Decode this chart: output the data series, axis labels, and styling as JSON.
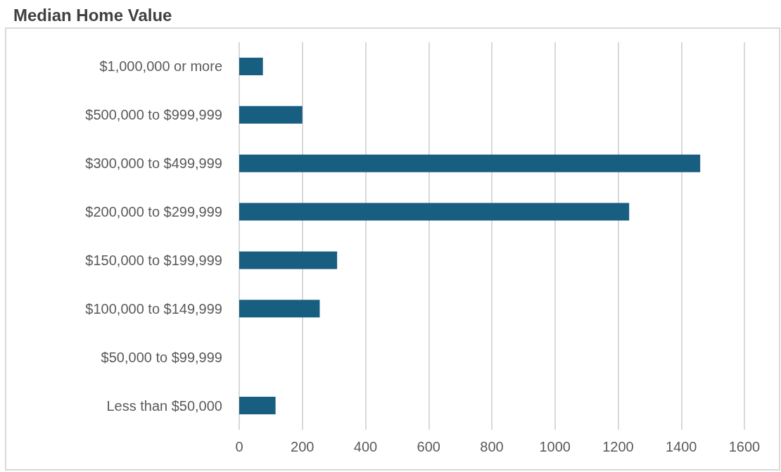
{
  "chart_data": {
    "type": "bar",
    "orientation": "horizontal",
    "title": "Median Home Value",
    "categories": [
      "$1,000,000 or more",
      "$500,000 to $999,999",
      "$300,000 to $499,999",
      "$200,000 to $299,999",
      "$150,000 to $199,999",
      "$100,000 to $149,999",
      "$50,000 to $99,999",
      "Less than $50,000"
    ],
    "values": [
      75,
      200,
      1460,
      1235,
      310,
      255,
      0,
      115
    ],
    "color": "#175e80",
    "xlim": [
      0,
      1600
    ],
    "xticks": [
      0,
      200,
      400,
      600,
      800,
      1000,
      1200,
      1400,
      1600
    ],
    "grid": "x"
  }
}
